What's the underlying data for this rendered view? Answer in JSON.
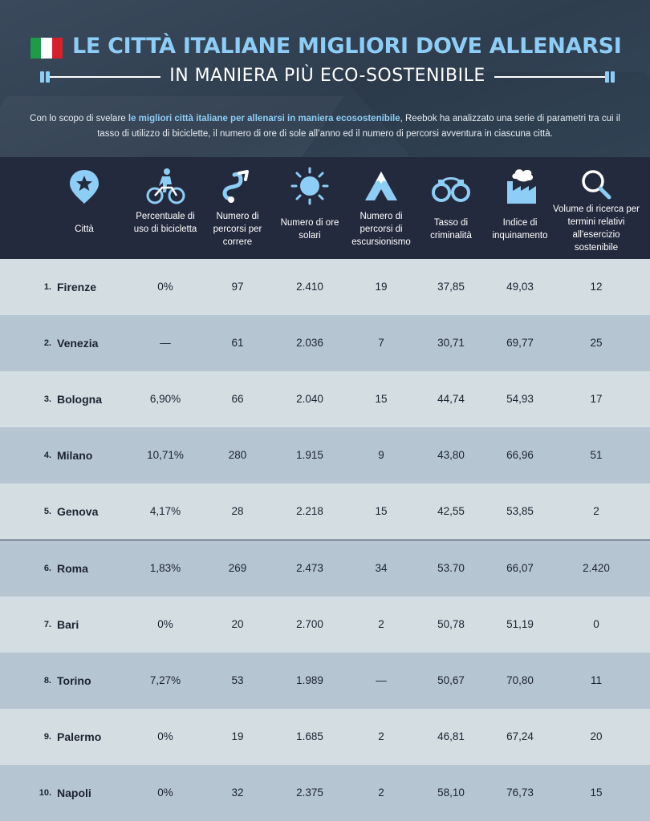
{
  "header": {
    "title": "LE CITTÀ ITALIANE MIGLIORI DOVE ALLENARSI",
    "subtitle": "IN MANIERA PIÙ ECO-SOSTENIBILE",
    "intro_before": "Con lo scopo di svelare ",
    "intro_highlight": "le migliori città italiane per allenarsi in maniera ecosostenibile",
    "intro_after": ", Reebok ha analizzato una serie di parametri tra cui il tasso di utilizzo di biciclette, il numero di ore di sole all’anno ed il numero di percorsi avventura in ciascuna città.",
    "colors": {
      "accent": "#8ecdf5",
      "flag_green": "#1f9a48",
      "flag_white": "#ffffff",
      "flag_red": "#d4202a"
    }
  },
  "columns": [
    {
      "key": "city",
      "label": "Città",
      "icon": "map-pin-star-icon"
    },
    {
      "key": "bike",
      "label": "Percentuale di uso di bicicletta",
      "icon": "cyclist-icon"
    },
    {
      "key": "runs",
      "label": "Numero di percorsi per correre",
      "icon": "running-route-icon"
    },
    {
      "key": "sun",
      "label": "Numero di ore solari",
      "icon": "sun-icon"
    },
    {
      "key": "hike",
      "label": "Numero di percorsi di escursionismo",
      "icon": "mountain-icon"
    },
    {
      "key": "crime",
      "label": "Tasso di criminalità",
      "icon": "handcuffs-icon"
    },
    {
      "key": "pollution",
      "label": "Indice di inquinamento",
      "icon": "factory-icon"
    },
    {
      "key": "search",
      "label": "Volume di ricerca per termini relativi all'esercizio sostenibile",
      "icon": "search-icon"
    }
  ],
  "rows": [
    {
      "rank": "1.",
      "city": "Firenze",
      "bike": "0%",
      "runs": "97",
      "sun": "2.410",
      "hike": "19",
      "crime": "37,85",
      "pollution": "49,03",
      "search": "12"
    },
    {
      "rank": "2.",
      "city": "Venezia",
      "bike": "—",
      "runs": "61",
      "sun": "2.036",
      "hike": "7",
      "crime": "30,71",
      "pollution": "69,77",
      "search": "25"
    },
    {
      "rank": "3.",
      "city": "Bologna",
      "bike": "6,90%",
      "runs": "66",
      "sun": "2.040",
      "hike": "15",
      "crime": "44,74",
      "pollution": "54,93",
      "search": "17"
    },
    {
      "rank": "4.",
      "city": "Milano",
      "bike": "10,71%",
      "runs": "280",
      "sun": "1.915",
      "hike": "9",
      "crime": "43,80",
      "pollution": "66,96",
      "search": "51"
    },
    {
      "rank": "5.",
      "city": "Genova",
      "bike": "4,17%",
      "runs": "28",
      "sun": "2.218",
      "hike": "15",
      "crime": "42,55",
      "pollution": "53,85",
      "search": "2"
    },
    {
      "rank": "6.",
      "city": "Roma",
      "bike": "1,83%",
      "runs": "269",
      "sun": "2.473",
      "hike": "34",
      "crime": "53.70",
      "pollution": "66,07",
      "search": "2.420"
    },
    {
      "rank": "7.",
      "city": "Bari",
      "bike": "0%",
      "runs": "20",
      "sun": "2.700",
      "hike": "2",
      "crime": "50,78",
      "pollution": "51,19",
      "search": "0"
    },
    {
      "rank": "8.",
      "city": "Torino",
      "bike": "7,27%",
      "runs": "53",
      "sun": "1.989",
      "hike": "—",
      "crime": "50,67",
      "pollution": "70,80",
      "search": "11"
    },
    {
      "rank": "9.",
      "city": "Palermo",
      "bike": "0%",
      "runs": "19",
      "sun": "1.685",
      "hike": "2",
      "crime": "46,81",
      "pollution": "67,24",
      "search": "20"
    },
    {
      "rank": "10.",
      "city": "Napoli",
      "bike": "0%",
      "runs": "32",
      "sun": "2.375",
      "hike": "2",
      "crime": "58,10",
      "pollution": "76,73",
      "search": "15"
    }
  ]
}
